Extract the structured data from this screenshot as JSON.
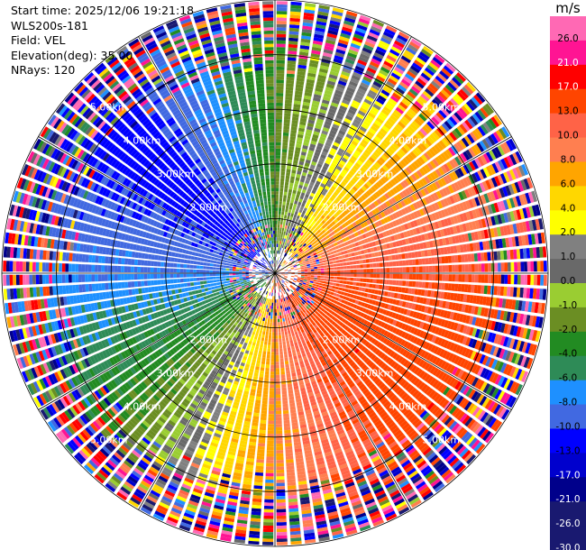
{
  "header": {
    "start_time": "Start time: 2025/12/06 19:21:18",
    "station": "WLS200s-181",
    "field": "Field: VEL",
    "elevation": "Elevation(deg): 35.00",
    "nrays": "NRays: 120"
  },
  "colorbar": {
    "unit": "m/s",
    "colors": [
      "#191970",
      "#00008b",
      "#0000cd",
      "#0000ff",
      "#4169e1",
      "#1e90ff",
      "#2e8b57",
      "#228b22",
      "#6b8e23",
      "#9acd32",
      "#696969",
      "#808080",
      "#ffff00",
      "#ffd700",
      "#ffa500",
      "#ff7f50",
      "#ff6347",
      "#ff4500",
      "#ff0000",
      "#ff1493",
      "#ff69b4"
    ],
    "tick_labels": [
      "-30.0",
      "-26.0",
      "-21.0",
      "-17.0",
      "-13.0",
      "-10.0",
      "-8.0",
      "-6.0",
      "-4.0",
      "-2.0",
      "-1.0",
      "0.0",
      "1.0",
      "2.0",
      "4.0",
      "6.0",
      "8.0",
      "10.0",
      "13.0",
      "17.0",
      "21.0",
      "26.0"
    ]
  },
  "chart_data": {
    "type": "heatmap",
    "subtype": "ppi-polar",
    "field": "VEL",
    "units": "m/s",
    "elevation_deg": 35.0,
    "n_rays": 120,
    "range_rings_km": [
      1,
      2,
      3,
      4,
      5
    ],
    "range_ring_labels": [
      "2.00km",
      "3.00km",
      "4.00km",
      "5.00km"
    ],
    "max_range_km": 5.0,
    "spoke_angles_deg": [
      0,
      30,
      60,
      90,
      120,
      150
    ],
    "velocity_pattern": {
      "description_sectors_deg_clockwise_from_north": [
        {
          "azimuth_deg": 0,
          "approx_velocity": -4.0
        },
        {
          "azimuth_deg": 45,
          "approx_velocity": 4.0
        },
        {
          "azimuth_deg": 90,
          "approx_velocity": 10.0
        },
        {
          "azimuth_deg": 135,
          "approx_velocity": 12.0
        },
        {
          "azimuth_deg": 180,
          "approx_velocity": 6.0
        },
        {
          "azimuth_deg": 225,
          "approx_velocity": -4.0
        },
        {
          "azimuth_deg": 270,
          "approx_velocity": -10.0
        },
        {
          "azimuth_deg": 315,
          "approx_velocity": -15.0
        }
      ]
    }
  }
}
